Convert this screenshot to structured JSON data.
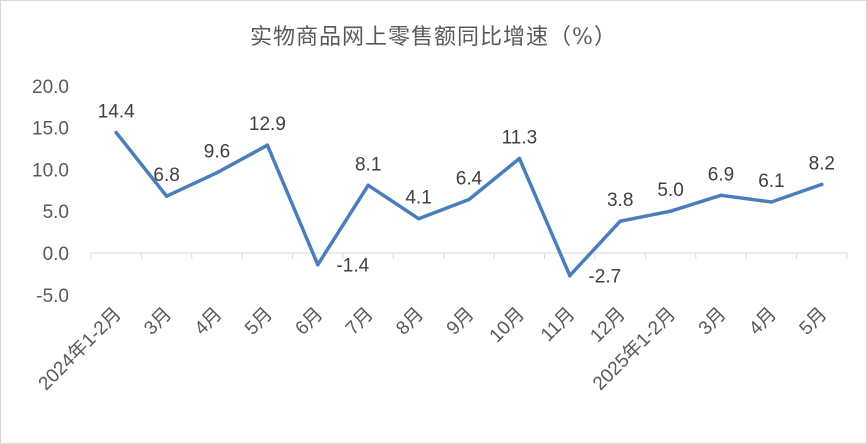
{
  "chart_data": {
    "type": "line",
    "title": "实物商品网上零售额同比增速（%）",
    "categories": [
      "2024年1-2月",
      "3月",
      "4月",
      "5月",
      "6月",
      "7月",
      "8月",
      "9月",
      "10月",
      "11月",
      "12月",
      "2025年1-2月",
      "3月",
      "4月",
      "5月"
    ],
    "series": [
      {
        "values": [
          14.4,
          6.8,
          9.6,
          12.9,
          -1.4,
          8.1,
          4.1,
          6.4,
          11.3,
          -2.7,
          3.8,
          5.0,
          6.9,
          6.1,
          8.2
        ]
      }
    ],
    "data_labels": [
      "14.4",
      "6.8",
      "9.6",
      "12.9",
      "-1.4",
      "8.1",
      "4.1",
      "6.4",
      "11.3",
      "-2.7",
      "3.8",
      "5.0",
      "6.9",
      "6.1",
      "8.2"
    ],
    "yticks": [
      "20.0",
      "15.0",
      "10.0",
      "5.0",
      "0.0",
      "-5.0"
    ],
    "ylim": [
      -5,
      20
    ],
    "xlabel": "",
    "ylabel": "",
    "grid": false,
    "legend": "none",
    "line_color": "#4a7ebb"
  }
}
